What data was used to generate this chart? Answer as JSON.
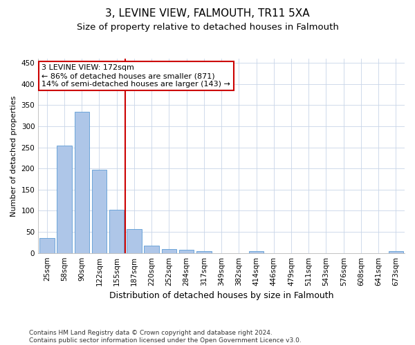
{
  "title": "3, LEVINE VIEW, FALMOUTH, TR11 5XA",
  "subtitle": "Size of property relative to detached houses in Falmouth",
  "xlabel": "Distribution of detached houses by size in Falmouth",
  "ylabel": "Number of detached properties",
  "categories": [
    "25sqm",
    "58sqm",
    "90sqm",
    "122sqm",
    "155sqm",
    "187sqm",
    "220sqm",
    "252sqm",
    "284sqm",
    "317sqm",
    "349sqm",
    "382sqm",
    "414sqm",
    "446sqm",
    "479sqm",
    "511sqm",
    "543sqm",
    "576sqm",
    "608sqm",
    "641sqm",
    "673sqm"
  ],
  "values": [
    35,
    255,
    335,
    197,
    103,
    57,
    17,
    10,
    7,
    5,
    0,
    0,
    4,
    0,
    0,
    0,
    0,
    0,
    0,
    0,
    4
  ],
  "bar_color": "#aec6e8",
  "bar_edge_color": "#5b9bd5",
  "vline_pos": 4.5,
  "vline_color": "#cc0000",
  "annotation_line1": "3 LEVINE VIEW: 172sqm",
  "annotation_line2": "← 86% of detached houses are smaller (871)",
  "annotation_line3": "14% of semi-detached houses are larger (143) →",
  "annotation_box_color": "#ffffff",
  "annotation_box_edge_color": "#cc0000",
  "ylim": [
    0,
    460
  ],
  "yticks": [
    0,
    50,
    100,
    150,
    200,
    250,
    300,
    350,
    400,
    450
  ],
  "bg_color": "#ffffff",
  "grid_color": "#c8d4e8",
  "footer_line1": "Contains HM Land Registry data © Crown copyright and database right 2024.",
  "footer_line2": "Contains public sector information licensed under the Open Government Licence v3.0.",
  "title_fontsize": 11,
  "subtitle_fontsize": 9.5,
  "axis_fontsize": 8,
  "tick_fontsize": 7.5,
  "annotation_fontsize": 8,
  "ylabel_fontsize": 8,
  "xlabel_fontsize": 9,
  "footer_fontsize": 6.5
}
